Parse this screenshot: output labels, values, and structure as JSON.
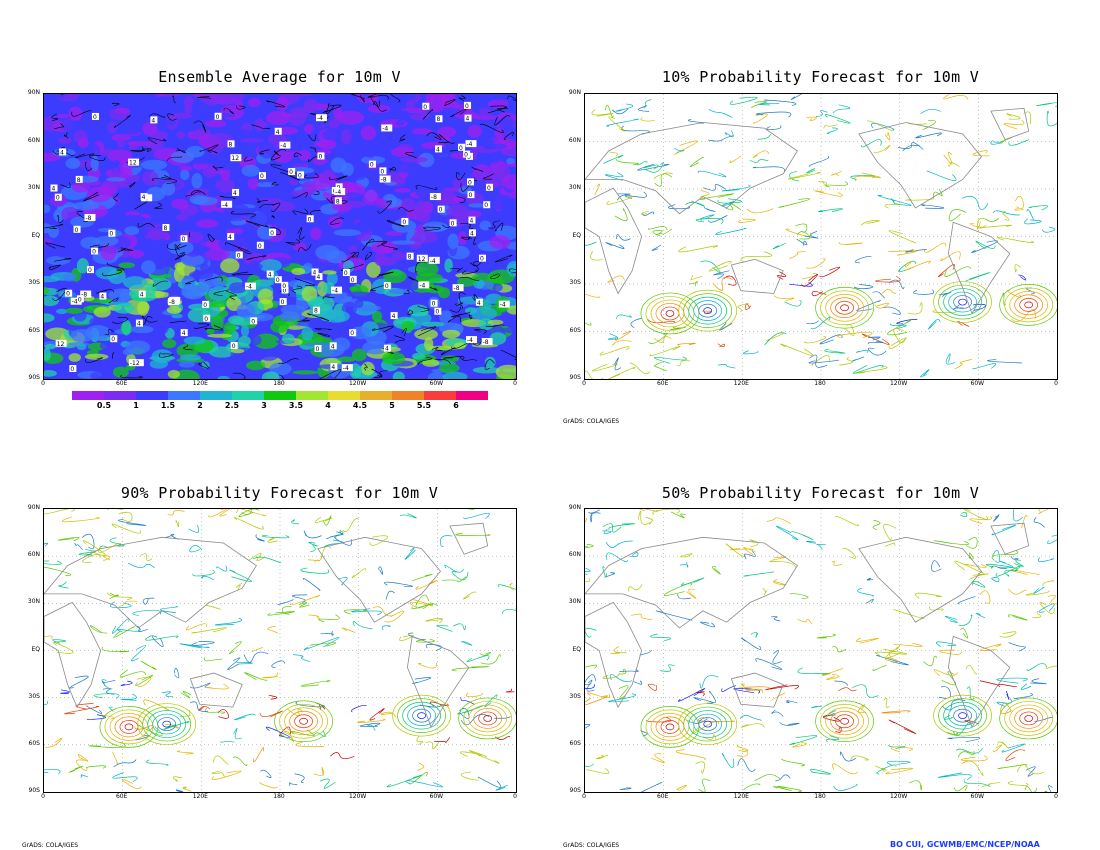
{
  "panels": [
    {
      "id": "p1",
      "title": "Ensemble Average for 10m V",
      "kind": "filled"
    },
    {
      "id": "p2",
      "title": "10% Probability Forecast for 10m V",
      "kind": "contour"
    },
    {
      "id": "p3",
      "title": "90% Probability Forecast for 10m V",
      "kind": "contour"
    },
    {
      "id": "p4",
      "title": "50% Probability Forecast for 10m V",
      "kind": "contour"
    }
  ],
  "lat_labels": [
    "90N",
    "60N",
    "30N",
    "EQ",
    "30S",
    "60S",
    "90S"
  ],
  "lon_labels": [
    "0",
    "60E",
    "120E",
    "180",
    "120W",
    "60W",
    "0"
  ],
  "colorbar": {
    "labels": [
      "0.5",
      "1",
      "1.5",
      "2",
      "2.5",
      "3",
      "3.5",
      "4",
      "4.5",
      "5",
      "5.5",
      "6"
    ],
    "colors": [
      "#a020f0",
      "#7a2cf0",
      "#3c3cff",
      "#3c78ff",
      "#20b4d2",
      "#20d2aa",
      "#10c810",
      "#a0e632",
      "#e6dc32",
      "#e6af2d",
      "#f08228",
      "#fa3c3c",
      "#f00082"
    ]
  },
  "credits": {
    "grads_p1": "GrADS: COLA/IGES",
    "grads_p3": "GrADS: COLA/IGES",
    "grads_p4": "GrADS: COLA/IGES",
    "author": "BO CUI, GCWMB/EMC/NCEP/NOAA"
  },
  "contour_colors": [
    "#0a1eff",
    "#1e78c8",
    "#00b4c8",
    "#00c878",
    "#5ac800",
    "#b4c800",
    "#e6b400",
    "#f08c00",
    "#e63c00",
    "#c80000"
  ]
}
